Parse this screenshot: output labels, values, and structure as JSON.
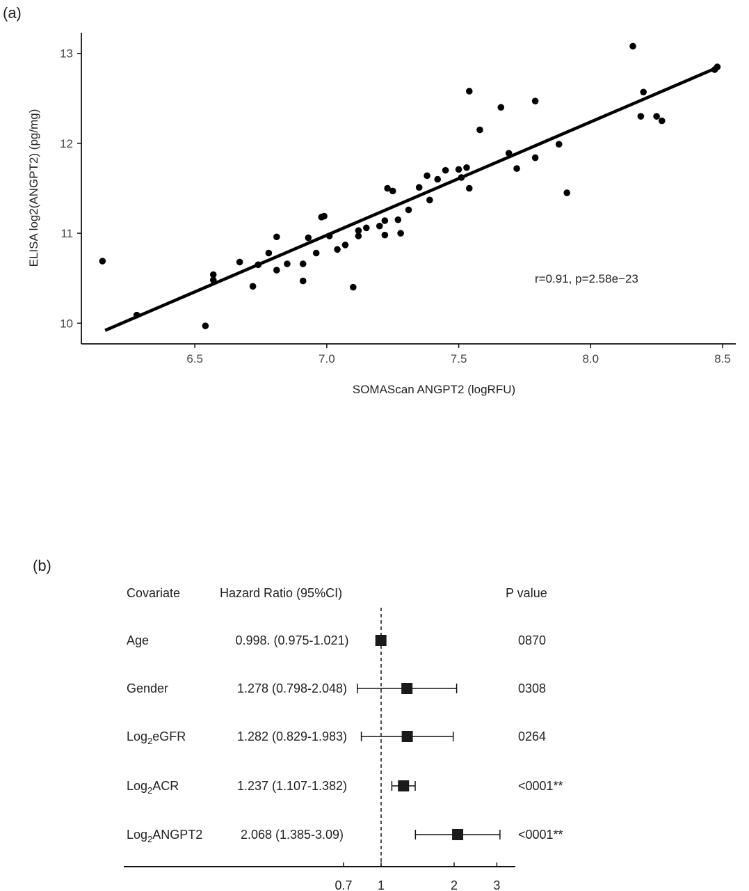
{
  "chart_data": [
    {
      "type": "scatter",
      "panel_label": "(a)",
      "xlabel": "SOMAScan ANGPT2 (logRFU)",
      "ylabel": "ELISA log2(ANGPT2) (pg/mg)",
      "xlim": [
        6.07,
        8.55
      ],
      "ylim": [
        9.77,
        13.23
      ],
      "x_ticks": [
        6.5,
        7.0,
        7.5,
        8.0,
        8.5
      ],
      "x_tick_labels": [
        "6.5",
        "7.0",
        "7.5",
        "8.0",
        "8.5"
      ],
      "y_ticks": [
        10,
        11,
        12,
        13
      ],
      "y_tick_labels": [
        "10",
        "11",
        "12",
        "13"
      ],
      "annotation": "r=0.91, p=2.58e−23",
      "grid": false,
      "points": [
        [
          6.15,
          10.69
        ],
        [
          6.28,
          10.09
        ],
        [
          6.54,
          9.97
        ],
        [
          6.57,
          10.54
        ],
        [
          6.57,
          10.48
        ],
        [
          6.67,
          10.68
        ],
        [
          6.72,
          10.41
        ],
        [
          6.74,
          10.65
        ],
        [
          6.78,
          10.78
        ],
        [
          6.81,
          10.96
        ],
        [
          6.81,
          10.59
        ],
        [
          6.85,
          10.66
        ],
        [
          6.91,
          10.47
        ],
        [
          6.91,
          10.66
        ],
        [
          6.93,
          10.95
        ],
        [
          6.96,
          10.78
        ],
        [
          6.98,
          11.18
        ],
        [
          6.99,
          11.19
        ],
        [
          7.01,
          10.97
        ],
        [
          7.04,
          10.82
        ],
        [
          7.07,
          10.87
        ],
        [
          7.1,
          10.4
        ],
        [
          7.12,
          11.03
        ],
        [
          7.12,
          10.97
        ],
        [
          7.15,
          11.06
        ],
        [
          7.2,
          11.08
        ],
        [
          7.22,
          11.14
        ],
        [
          7.22,
          10.98
        ],
        [
          7.23,
          11.5
        ],
        [
          7.25,
          11.47
        ],
        [
          7.27,
          11.15
        ],
        [
          7.28,
          11.0
        ],
        [
          7.31,
          11.26
        ],
        [
          7.35,
          11.51
        ],
        [
          7.38,
          11.64
        ],
        [
          7.39,
          11.37
        ],
        [
          7.42,
          11.6
        ],
        [
          7.45,
          11.7
        ],
        [
          7.5,
          11.71
        ],
        [
          7.51,
          11.62
        ],
        [
          7.53,
          11.73
        ],
        [
          7.54,
          12.58
        ],
        [
          7.54,
          11.5
        ],
        [
          7.58,
          12.15
        ],
        [
          7.66,
          12.4
        ],
        [
          7.69,
          11.89
        ],
        [
          7.72,
          11.72
        ],
        [
          7.79,
          11.84
        ],
        [
          7.79,
          12.47
        ],
        [
          7.88,
          11.99
        ],
        [
          7.91,
          11.45
        ],
        [
          8.16,
          13.08
        ],
        [
          8.19,
          12.3
        ],
        [
          8.2,
          12.57
        ],
        [
          8.25,
          12.3
        ],
        [
          8.27,
          12.25
        ],
        [
          8.47,
          12.82
        ],
        [
          8.48,
          12.85
        ]
      ],
      "fit_line": [
        [
          6.16,
          9.92
        ],
        [
          8.47,
          12.83
        ]
      ]
    },
    {
      "type": "forest",
      "panel_label": "(b)",
      "headers": {
        "covariate": "Covariate",
        "hr": "Hazard Ratio (95%CI)",
        "p": "P value"
      },
      "x_ticks": [
        0.7,
        1,
        2,
        3
      ],
      "x_tick_labels": [
        "0.7",
        "1",
        "2",
        "3"
      ],
      "reference_line": 1,
      "rows": [
        {
          "sub": false,
          "label": "Age",
          "label_pre": "",
          "label_sub": "",
          "label_post": "",
          "hr_text": "0.998. (0.975-1.021)",
          "p_text": "0870",
          "hr": 0.998,
          "lo": 0.975,
          "hi": 1.021
        },
        {
          "sub": false,
          "label": "Gender",
          "label_pre": "",
          "label_sub": "",
          "label_post": "",
          "hr_text": "1.278 (0.798-2.048)",
          "p_text": "0308",
          "hr": 1.278,
          "lo": 0.798,
          "hi": 2.048
        },
        {
          "sub": true,
          "label": "",
          "label_pre": "Log",
          "label_sub": "2",
          "label_post": "eGFR",
          "hr_text": "1.282 (0.829-1.983)",
          "p_text": "0264",
          "hr": 1.282,
          "lo": 0.829,
          "hi": 1.983
        },
        {
          "sub": true,
          "label": "",
          "label_pre": "Log",
          "label_sub": "2",
          "label_post": "ACR",
          "hr_text": "1.237 (1.107-1.382)",
          "p_text": "<0001**",
          "hr": 1.237,
          "lo": 1.107,
          "hi": 1.382
        },
        {
          "sub": true,
          "label": "",
          "label_pre": "Log",
          "label_sub": "2",
          "label_post": "ANGPT2",
          "hr_text": "2.068 (1.385-3.09)",
          "p_text": "<0001**",
          "hr": 2.068,
          "lo": 1.385,
          "hi": 3.09
        }
      ]
    }
  ]
}
